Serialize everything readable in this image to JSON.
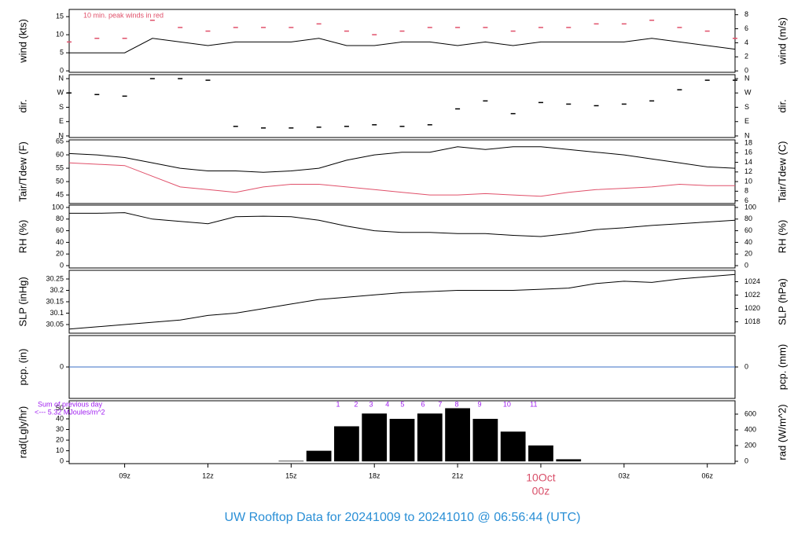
{
  "chart_data": {
    "type": "multi-panel",
    "title": "UW Rooftop Data for 20241009  to  20241010 @ 06:56:44  (UTC)",
    "date_label": "10Oct",
    "x": [
      7,
      8,
      9,
      10,
      11,
      12,
      13,
      14,
      15,
      16,
      17,
      18,
      19,
      20,
      21,
      22,
      23,
      24,
      25,
      26,
      27,
      28,
      29,
      30,
      31
    ],
    "xlim": [
      7,
      31
    ],
    "xticks": [
      {
        "value": 9,
        "label": "09z"
      },
      {
        "value": 12,
        "label": "12z"
      },
      {
        "value": 15,
        "label": "15z"
      },
      {
        "value": 18,
        "label": "18z"
      },
      {
        "value": 21,
        "label": "21z"
      },
      {
        "value": 24,
        "label": "00z"
      },
      {
        "value": 27,
        "label": "03z"
      },
      {
        "value": 30,
        "label": "06z"
      }
    ],
    "panels": [
      {
        "type": "line",
        "ylabel": "wind (kts)",
        "y2label": "wind (m/s)",
        "ylim": [
          -0.4,
          17
        ],
        "yticks": [
          0,
          5,
          10,
          15
        ],
        "y2lim": [
          -0.2,
          8.75
        ],
        "y2ticks": [
          0,
          2,
          4,
          6,
          8
        ],
        "annotation": "10 min. peak winds in red",
        "series": [
          {
            "style": "line",
            "color": "#000000",
            "values": [
              5,
              5,
              5,
              9,
              8,
              7,
              8,
              8,
              8,
              9,
              7,
              7,
              8,
              8,
              7,
              8,
              7,
              8,
              8,
              8,
              8,
              9,
              8,
              7,
              6
            ]
          },
          {
            "style": "dash",
            "color": "#e0506a",
            "values": [
              8,
              9,
              9,
              14,
              12,
              11,
              12,
              12,
              12,
              13,
              11,
              10,
              11,
              12,
              12,
              12,
              11,
              12,
              12,
              13,
              13,
              14,
              12,
              11,
              9
            ]
          }
        ]
      },
      {
        "type": "scatter",
        "ylabel": "dir.",
        "y2label": "dir.",
        "ylim": [
          -10,
          385
        ],
        "yticks": [
          {
            "value": 0,
            "label": "N"
          },
          {
            "value": 90,
            "label": "E"
          },
          {
            "value": 180,
            "label": "S"
          },
          {
            "value": 270,
            "label": "W"
          },
          {
            "value": 360,
            "label": "N"
          }
        ],
        "y2lim": [
          -10,
          385
        ],
        "y2ticks": [
          {
            "value": 0,
            "label": "N"
          },
          {
            "value": 90,
            "label": "E"
          },
          {
            "value": 180,
            "label": "S"
          },
          {
            "value": 270,
            "label": "W"
          },
          {
            "value": 360,
            "label": "N"
          }
        ],
        "series": [
          {
            "style": "dash",
            "color": "#000000",
            "values": [
              270,
              260,
              250,
              360,
              360,
              350,
              60,
              50,
              50,
              55,
              60,
              70,
              60,
              70,
              170,
              220,
              140,
              210,
              200,
              190,
              200,
              220,
              290,
              350,
              350
            ]
          }
        ]
      },
      {
        "type": "line",
        "ylabel": "Tair/Tdew (F)",
        "y2label": "Tair/Tdew (C)",
        "ylim": [
          41.8,
          65.6
        ],
        "yticks": [
          45,
          50,
          55,
          60,
          65
        ],
        "y2lim": [
          5.44,
          18.67
        ],
        "y2ticks": [
          6,
          8,
          10,
          12,
          14,
          16,
          18
        ],
        "series": [
          {
            "style": "line",
            "color": "#000000",
            "values": [
              60.5,
              60,
              59,
              57,
              55,
              54,
              54,
              53.5,
              54,
              55,
              58,
              60,
              61,
              61,
              63,
              62,
              63,
              63,
              62,
              61,
              60,
              58.5,
              57,
              55.5,
              55
            ]
          },
          {
            "style": "line",
            "color": "#e0506a",
            "values": [
              57,
              56.5,
              56,
              52,
              48,
              47,
              46,
              48,
              49,
              49,
              48,
              47,
              46,
              45,
              45,
              45.5,
              45,
              44.5,
              46,
              47,
              47.5,
              48,
              49,
              48.5,
              48.5
            ]
          }
        ]
      },
      {
        "type": "line",
        "ylabel": "RH (%)",
        "y2label": "RH (%)",
        "ylim": [
          -4,
          104
        ],
        "yticks": [
          0,
          20,
          40,
          60,
          80,
          100
        ],
        "y2lim": [
          -4,
          104
        ],
        "y2ticks": [
          0,
          20,
          40,
          60,
          80,
          100
        ],
        "series": [
          {
            "style": "line",
            "color": "#000000",
            "values": [
              90,
              90,
              91,
              80,
              76,
              72,
              84,
              85,
              84,
              78,
              68,
              60,
              57,
              57,
              55,
              55,
              52,
              50,
              55,
              62,
              65,
              69,
              72,
              75,
              78
            ]
          }
        ]
      },
      {
        "type": "line",
        "ylabel": "SLP (inHg)",
        "y2label": "SLP (hPa)",
        "ylim": [
          30.012,
          30.288
        ],
        "yticks": [
          30.05,
          30.1,
          30.15,
          30.2,
          30.25
        ],
        "y2lim": [
          1016.3,
          1025.7
        ],
        "y2ticks": [
          1018,
          1020,
          1022,
          1024
        ],
        "series": [
          {
            "style": "line",
            "color": "#000000",
            "values": [
              30.03,
              30.04,
              30.05,
              30.06,
              30.07,
              30.09,
              30.1,
              30.12,
              30.14,
              30.16,
              30.17,
              30.18,
              30.19,
              30.195,
              30.2,
              30.2,
              30.2,
              30.205,
              30.21,
              30.23,
              30.24,
              30.235,
              30.25,
              30.26,
              30.27
            ]
          }
        ]
      },
      {
        "type": "line",
        "ylabel": "pcp. (in)",
        "y2label": "pcp. (mm)",
        "ylim": [
          -1,
          1
        ],
        "yticks": [
          0
        ],
        "y2lim": [
          -1,
          1
        ],
        "y2ticks": [
          0
        ],
        "series": [
          {
            "style": "line",
            "color": "#3a6fc4",
            "values": [
              0,
              0,
              0,
              0,
              0,
              0,
              0,
              0,
              0,
              0,
              0,
              0,
              0,
              0,
              0,
              0,
              0,
              0,
              0,
              0,
              0,
              0,
              0,
              0,
              0
            ]
          }
        ]
      },
      {
        "type": "bar",
        "ylabel": "rad(Lgly/hr)",
        "y2label": "rad (W/m^2)",
        "ylim": [
          -2.1,
          57
        ],
        "yticks": [
          0,
          10,
          20,
          30,
          40,
          50
        ],
        "y2lim": [
          -30,
          770
        ],
        "y2ticks": [
          0,
          200,
          400,
          600
        ],
        "notes": [
          "Sum of previous day",
          "<--- 5.32 MJoules/m^2"
        ],
        "hour_labels": {
          "x": [
            16.69,
            17.34,
            17.88,
            18.47,
            19.01,
            19.75,
            20.37,
            20.97,
            21.79,
            22.78,
            23.74
          ],
          "labels": [
            1,
            2,
            3,
            4,
            5,
            6,
            7,
            8,
            9,
            10,
            11
          ]
        },
        "series": [
          {
            "style": "bar",
            "color": "#000000",
            "values": [
              0,
              0,
              0,
              0,
              0,
              0,
              0,
              0,
              0.5,
              10,
              33,
              45,
              40,
              45,
              50,
              40,
              28,
              15,
              2,
              0,
              0,
              0,
              0,
              0,
              0
            ]
          }
        ]
      }
    ]
  }
}
